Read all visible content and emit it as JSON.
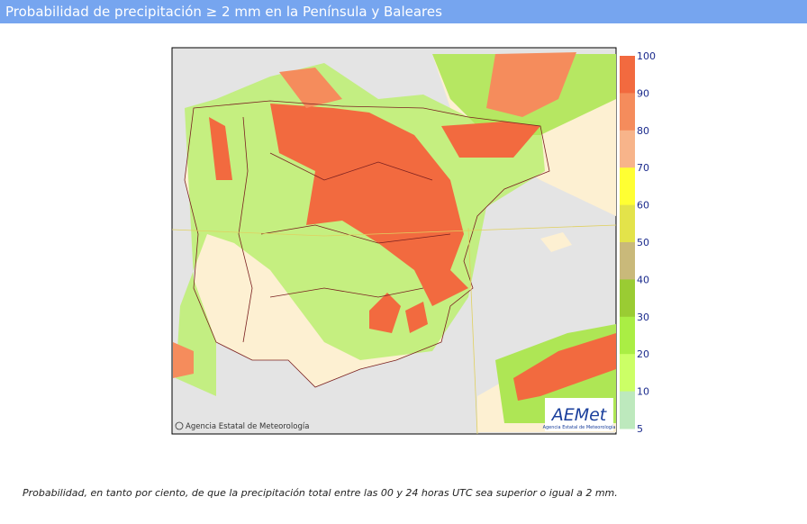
{
  "header": {
    "title": "Probabilidad de precipitación ≥ 2 mm en la Península y Baleares"
  },
  "map": {
    "credit": "Agencia Estatal de Meteorología",
    "logo": "AEMet",
    "logo_sub": "Agencia Estatal de Meteorología"
  },
  "legend": {
    "ticks": [
      "100",
      "90",
      "80",
      "70",
      "60",
      "50",
      "40",
      "30",
      "20",
      "10",
      "5"
    ]
  },
  "caption": "Probabilidad, en tanto por ciento, de que la precipitación total entre las 00 y 24 horas UTC sea superior o igual a 2 mm."
}
